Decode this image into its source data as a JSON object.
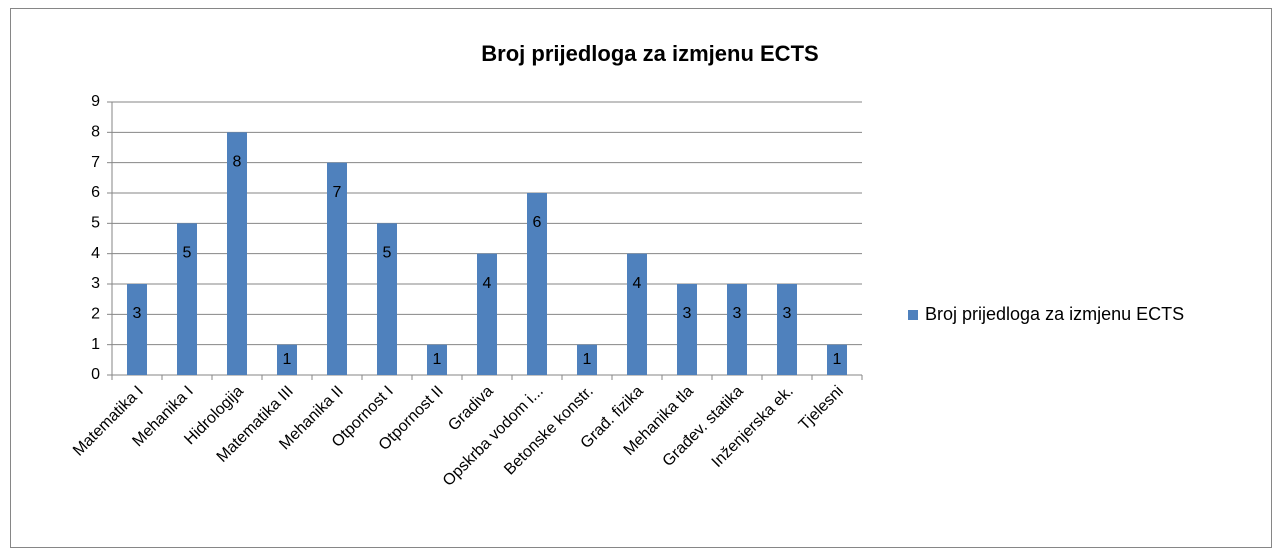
{
  "chart_data": {
    "type": "bar",
    "title": "Broj prijedloga za izmjenu ECTS",
    "categories": [
      "Matematika I",
      "Mehanika I",
      "Hidrologija",
      "Matematika III",
      "Mehanika II",
      "Otpornost I",
      "Otpornost II",
      "Gradiva",
      "Opskrba vodom i...",
      "Betonske konstr.",
      "Građ. fizika",
      "Mehanika tla",
      "Građev. statika",
      "Inženjerska ek.",
      "Tjelesni"
    ],
    "series": [
      {
        "name": "Broj prijedloga za izmjenu ECTS",
        "color": "#4f81bd",
        "values": [
          3,
          5,
          8,
          1,
          7,
          5,
          1,
          4,
          6,
          1,
          4,
          3,
          3,
          3,
          1
        ]
      }
    ],
    "ylim": [
      0,
      9
    ],
    "yticks": [
      0,
      1,
      2,
      3,
      4,
      5,
      6,
      7,
      8,
      9
    ],
    "grid": true,
    "legend": "right",
    "data_labels": true
  }
}
